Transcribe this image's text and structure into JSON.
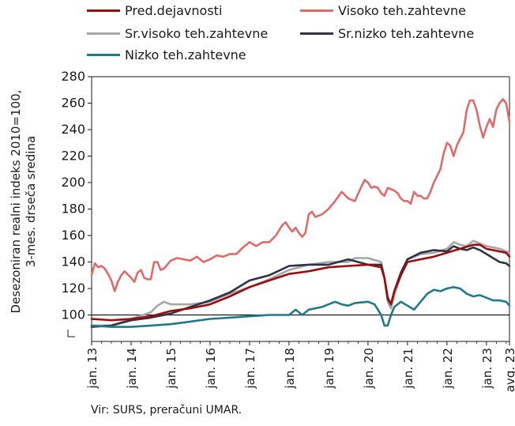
{
  "chart_data": {
    "type": "line",
    "ylabel_lines": [
      "Desezoniran realni indeks 2010=100,",
      "3-mes. drseča sredina"
    ],
    "ylim": [
      80,
      280
    ],
    "yticks": [
      100,
      120,
      140,
      160,
      180,
      200,
      220,
      240,
      260,
      280
    ],
    "ytick_labels": [
      "100",
      "120",
      "140",
      "160",
      "180",
      "200",
      "220",
      "240",
      "260",
      "280"
    ],
    "xtick_labels": [
      "jan. 13",
      "jan. 14",
      "jan. 15",
      "jan. 16",
      "jan. 17",
      "jan. 18",
      "jan. 19",
      "jan. 20",
      "jan. 21",
      "jan. 22",
      "jan. 23",
      "avg. 23"
    ],
    "xtick_month_index": [
      0,
      12,
      24,
      36,
      48,
      60,
      72,
      84,
      96,
      108,
      120,
      127
    ],
    "reference_line": 100,
    "grid": false,
    "legend_position": "top",
    "source": "Vir: SURS, preračuni UMAR.",
    "series": [
      {
        "name": "Pred.dejavnosti",
        "color": "#9b0d0d",
        "anchors": [
          [
            0,
            97
          ],
          [
            6,
            96
          ],
          [
            12,
            97
          ],
          [
            18,
            99
          ],
          [
            24,
            103
          ],
          [
            30,
            105
          ],
          [
            36,
            108
          ],
          [
            42,
            114
          ],
          [
            48,
            121
          ],
          [
            54,
            126
          ],
          [
            60,
            131
          ],
          [
            66,
            133
          ],
          [
            72,
            136
          ],
          [
            78,
            137
          ],
          [
            84,
            138
          ],
          [
            88,
            136
          ],
          [
            89,
            128
          ],
          [
            90,
            113
          ],
          [
            91,
            108
          ],
          [
            92,
            118
          ],
          [
            94,
            130
          ],
          [
            96,
            140
          ],
          [
            100,
            142
          ],
          [
            104,
            144
          ],
          [
            108,
            147
          ],
          [
            112,
            150
          ],
          [
            116,
            153
          ],
          [
            118,
            153
          ],
          [
            120,
            150
          ],
          [
            124,
            148
          ],
          [
            126,
            147
          ],
          [
            127,
            144
          ]
        ]
      },
      {
        "name": "Visoko teh.zahtevne",
        "color": "#e06a6a",
        "anchors": [
          [
            0,
            130
          ],
          [
            1,
            139
          ],
          [
            2,
            136
          ],
          [
            3,
            137
          ],
          [
            4,
            135
          ],
          [
            5,
            131
          ],
          [
            6,
            126
          ],
          [
            7,
            118
          ],
          [
            8,
            125
          ],
          [
            9,
            130
          ],
          [
            10,
            133
          ],
          [
            12,
            128
          ],
          [
            13,
            125
          ],
          [
            14,
            132
          ],
          [
            15,
            134
          ],
          [
            16,
            128
          ],
          [
            17,
            127
          ],
          [
            18,
            127
          ],
          [
            19,
            140
          ],
          [
            20,
            140
          ],
          [
            21,
            134
          ],
          [
            22,
            135
          ],
          [
            24,
            141
          ],
          [
            26,
            143
          ],
          [
            28,
            142
          ],
          [
            30,
            141
          ],
          [
            32,
            144
          ],
          [
            34,
            140
          ],
          [
            36,
            142
          ],
          [
            38,
            145
          ],
          [
            40,
            144
          ],
          [
            42,
            146
          ],
          [
            44,
            146
          ],
          [
            46,
            151
          ],
          [
            48,
            155
          ],
          [
            50,
            152
          ],
          [
            52,
            155
          ],
          [
            54,
            155
          ],
          [
            56,
            160
          ],
          [
            58,
            168
          ],
          [
            59,
            170
          ],
          [
            60,
            166
          ],
          [
            61,
            163
          ],
          [
            62,
            166
          ],
          [
            63,
            162
          ],
          [
            64,
            159
          ],
          [
            65,
            162
          ],
          [
            66,
            176
          ],
          [
            67,
            178
          ],
          [
            68,
            174
          ],
          [
            70,
            176
          ],
          [
            72,
            180
          ],
          [
            74,
            186
          ],
          [
            76,
            193
          ],
          [
            78,
            188
          ],
          [
            80,
            186
          ],
          [
            82,
            197
          ],
          [
            83,
            202
          ],
          [
            84,
            200
          ],
          [
            85,
            196
          ],
          [
            86,
            197
          ],
          [
            87,
            196
          ],
          [
            88,
            192
          ],
          [
            89,
            190
          ],
          [
            90,
            196
          ],
          [
            91,
            195
          ],
          [
            92,
            194
          ],
          [
            93,
            192
          ],
          [
            94,
            188
          ],
          [
            95,
            186
          ],
          [
            96,
            186
          ],
          [
            97,
            184
          ],
          [
            98,
            193
          ],
          [
            99,
            190
          ],
          [
            100,
            190
          ],
          [
            101,
            188
          ],
          [
            102,
            188
          ],
          [
            103,
            193
          ],
          [
            104,
            200
          ],
          [
            105,
            205
          ],
          [
            106,
            210
          ],
          [
            107,
            222
          ],
          [
            108,
            230
          ],
          [
            109,
            228
          ],
          [
            110,
            220
          ],
          [
            111,
            228
          ],
          [
            112,
            233
          ],
          [
            113,
            238
          ],
          [
            114,
            255
          ],
          [
            115,
            262
          ],
          [
            116,
            262
          ],
          [
            117,
            255
          ],
          [
            118,
            243
          ],
          [
            119,
            234
          ],
          [
            120,
            242
          ],
          [
            121,
            248
          ],
          [
            122,
            242
          ],
          [
            123,
            255
          ],
          [
            124,
            260
          ],
          [
            125,
            263
          ],
          [
            126,
            260
          ],
          [
            127,
            246
          ]
        ]
      },
      {
        "name": "Sr.visoko teh.zahtevne",
        "color": "#a6a6a6",
        "anchors": [
          [
            0,
            92
          ],
          [
            6,
            92
          ],
          [
            12,
            97
          ],
          [
            18,
            102
          ],
          [
            20,
            107
          ],
          [
            22,
            110
          ],
          [
            24,
            108
          ],
          [
            30,
            108
          ],
          [
            36,
            110
          ],
          [
            42,
            116
          ],
          [
            48,
            121
          ],
          [
            54,
            127
          ],
          [
            60,
            134
          ],
          [
            66,
            138
          ],
          [
            72,
            140
          ],
          [
            78,
            140
          ],
          [
            80,
            143
          ],
          [
            84,
            143
          ],
          [
            88,
            140
          ],
          [
            89,
            128
          ],
          [
            90,
            110
          ],
          [
            91,
            105
          ],
          [
            92,
            115
          ],
          [
            94,
            130
          ],
          [
            96,
            142
          ],
          [
            100,
            146
          ],
          [
            104,
            147
          ],
          [
            108,
            150
          ],
          [
            110,
            155
          ],
          [
            112,
            153
          ],
          [
            114,
            152
          ],
          [
            116,
            156
          ],
          [
            118,
            154
          ],
          [
            120,
            152
          ],
          [
            124,
            150
          ],
          [
            126,
            148
          ],
          [
            127,
            147
          ]
        ]
      },
      {
        "name": "Sr.nizko teh.zahtevne",
        "color": "#2e3447",
        "anchors": [
          [
            0,
            91
          ],
          [
            6,
            92
          ],
          [
            12,
            96
          ],
          [
            18,
            98
          ],
          [
            24,
            101
          ],
          [
            30,
            106
          ],
          [
            36,
            111
          ],
          [
            42,
            117
          ],
          [
            48,
            126
          ],
          [
            54,
            130
          ],
          [
            60,
            137
          ],
          [
            66,
            138
          ],
          [
            72,
            138
          ],
          [
            78,
            142
          ],
          [
            84,
            138
          ],
          [
            88,
            138
          ],
          [
            89,
            128
          ],
          [
            90,
            112
          ],
          [
            91,
            108
          ],
          [
            92,
            118
          ],
          [
            94,
            132
          ],
          [
            96,
            142
          ],
          [
            100,
            147
          ],
          [
            104,
            149
          ],
          [
            108,
            148
          ],
          [
            110,
            152
          ],
          [
            112,
            150
          ],
          [
            114,
            149
          ],
          [
            116,
            151
          ],
          [
            118,
            149
          ],
          [
            120,
            146
          ],
          [
            124,
            140
          ],
          [
            126,
            139
          ],
          [
            127,
            137
          ]
        ]
      },
      {
        "name": "Nizko teh.zahtevne",
        "color": "#1f7a8c",
        "anchors": [
          [
            0,
            92
          ],
          [
            6,
            91
          ],
          [
            12,
            91
          ],
          [
            18,
            92
          ],
          [
            24,
            93
          ],
          [
            30,
            95
          ],
          [
            36,
            97
          ],
          [
            42,
            98
          ],
          [
            48,
            99
          ],
          [
            54,
            100
          ],
          [
            60,
            100
          ],
          [
            62,
            104
          ],
          [
            64,
            100
          ],
          [
            66,
            104
          ],
          [
            68,
            105
          ],
          [
            70,
            106
          ],
          [
            72,
            108
          ],
          [
            74,
            110
          ],
          [
            76,
            108
          ],
          [
            78,
            107
          ],
          [
            80,
            109
          ],
          [
            84,
            110
          ],
          [
            86,
            108
          ],
          [
            88,
            100
          ],
          [
            89,
            92
          ],
          [
            90,
            92
          ],
          [
            91,
            100
          ],
          [
            92,
            106
          ],
          [
            94,
            110
          ],
          [
            96,
            107
          ],
          [
            98,
            104
          ],
          [
            100,
            110
          ],
          [
            102,
            116
          ],
          [
            104,
            119
          ],
          [
            106,
            118
          ],
          [
            108,
            120
          ],
          [
            110,
            121
          ],
          [
            112,
            120
          ],
          [
            114,
            116
          ],
          [
            116,
            114
          ],
          [
            118,
            115
          ],
          [
            120,
            113
          ],
          [
            122,
            111
          ],
          [
            124,
            111
          ],
          [
            126,
            110
          ],
          [
            127,
            107
          ]
        ]
      }
    ]
  }
}
